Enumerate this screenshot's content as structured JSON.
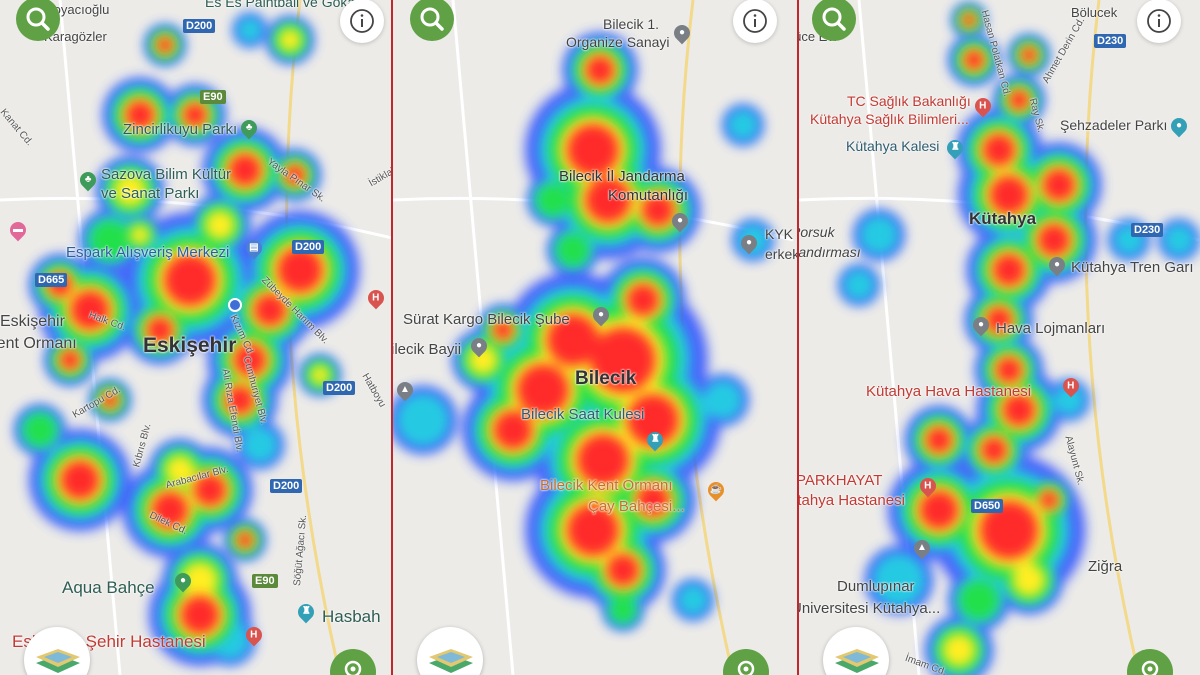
{
  "colors": {
    "heat_low": "#2b4bff",
    "heat_mid": "#22e04a",
    "heat_high": "#ffee22",
    "heat_max": "#ff2a2a",
    "control_green": "#5fa144",
    "divider": "#c1272d"
  },
  "controls": {
    "search": "search-icon",
    "info": "info-icon",
    "layers": "map-layers-icon",
    "locate": "my-location-icon"
  },
  "panels": [
    {
      "city": "Eskişehir",
      "labels": {
        "l1": "Koyacıoğlu",
        "l2": "Karagözler",
        "l3": "Es Es Paintball ve Gokart",
        "l4": "Zincirlikuyu Parkı",
        "l5": "Sazova Bilim Kültür",
        "l6": "ve Sanat Parkı",
        "l7": "Espark Alışveriş Merkezi",
        "l8": "Eskişehir",
        "l9": "Kent Ormanı",
        "l10": "Aqua Bahçe",
        "l11": "Eskişehir Şehir Hastanesi",
        "l12": "Hasbah",
        "s1": "Yayla Pınar Sk.",
        "s2": "Halk Cd.",
        "s3": "Zübeyde Hanım Blv.",
        "s4": "Kartopu Cd.",
        "s5": "Kıbrıs Blv.",
        "s6": "Arabacılar Blv.",
        "s7": "Dilek Cd.",
        "s8": "Cumhuriyet Blv.",
        "s9": "Ali Rıza Efendi Blv.",
        "s10": "Söğüt Ağacı Sk.",
        "s11": "Hatboyu",
        "s12": "İstiklal",
        "s13": "Kanat Cd.",
        "s14": "Kızım Cd."
      },
      "shields": [
        "D200",
        "E90",
        "D665",
        "D200",
        "D200",
        "D200",
        "E90"
      ]
    },
    {
      "city": "Bilecik",
      "labels": {
        "l1": "Bilecik 1.",
        "l2": "Organize Sanayi",
        "l3": "Bilecik İl Jandarma",
        "l4": "Komutanlığı",
        "l5": "KYK",
        "l6": "erkek",
        "l7": "Sürat Kargo Bilecik Şube",
        "l8": "Bilecik Bayii",
        "l9": "Bilecik Saat Kulesi",
        "l10": "Bilecik Kent Ormanı",
        "l11": "Çay Bahçesi..."
      }
    },
    {
      "city": "Kütahya",
      "labels": {
        "l1": "Bölucek",
        "l2": "Güce Evi",
        "l3": "TC Sağlık Bakanlığı",
        "l4": "Kütahya Sağlık Bilimleri...",
        "l5": "Kütahya Kalesi",
        "l6": "Şehzadeler Parkı",
        "l7": "Porsuk",
        "l8": "Bandırması",
        "l9": "Kütahya Tren Garı",
        "l10": "Hava Lojmanları",
        "l11": "Kütahya Hava Hastanesi",
        "l12": "Özel PARKHAYAT",
        "l13": "Kütahya Hastanesi",
        "l14": "Dumlupınar",
        "l15": "Üniversitesi Kütahya...",
        "l16": "Ziğra",
        "s1": "Hasan Polatkan Cd.",
        "s2": "Ahmet Derin Cd.",
        "s3": "Ray Sk.",
        "s4": "Alayunt Sk.",
        "s5": "İmam Cd."
      },
      "shields": [
        "D230",
        "D230",
        "D230",
        "D650"
      ]
    }
  ]
}
